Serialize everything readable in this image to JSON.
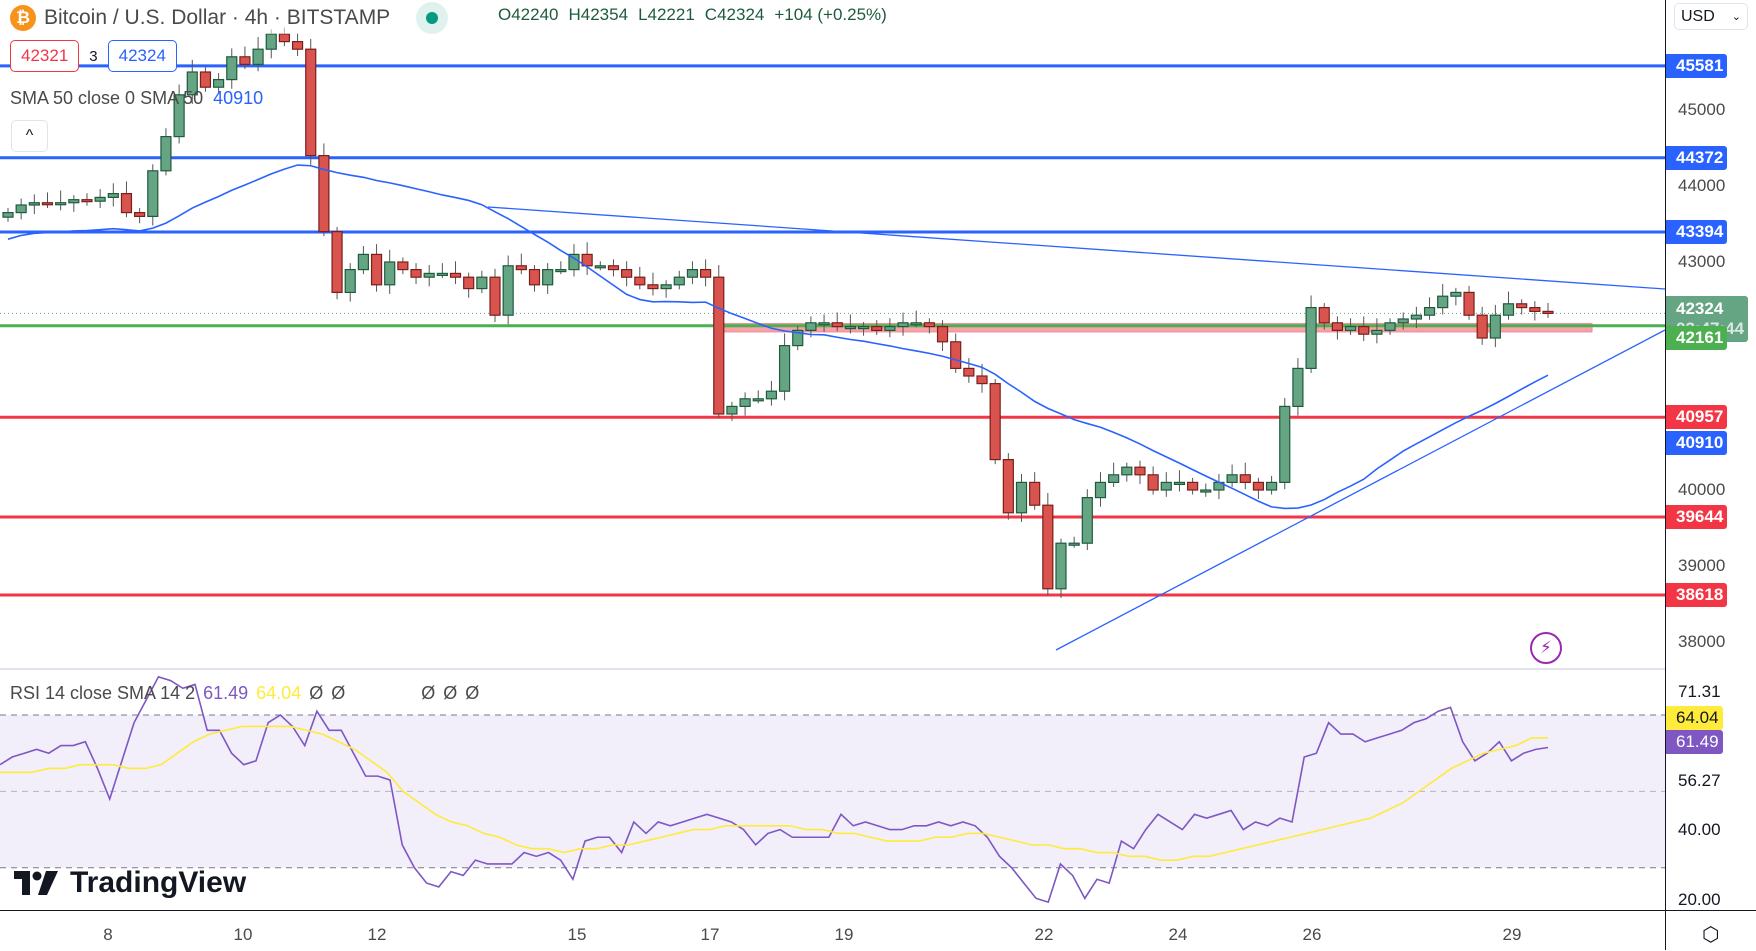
{
  "header": {
    "symbol_icon": "bitcoin-icon",
    "title": "Bitcoin / U.S. Dollar · 4h · BITSTAMP",
    "market_status": "open",
    "ohlc": {
      "open": "O42240",
      "high": "H42354",
      "low": "L42221",
      "close": "C42324",
      "change": "+104 (+0.25%)"
    },
    "bid": "42321",
    "spread": "3",
    "ask": "42324"
  },
  "indicators": {
    "sma": {
      "label": "SMA 50 close 0 SMA 50",
      "value": "40910"
    },
    "rsi": {
      "label": "RSI 14 close SMA 14 2",
      "rsi_value": "61.49",
      "sma_value": "64.04",
      "extras": [
        "Ø",
        "Ø",
        "Ø",
        "Ø",
        "Ø"
      ]
    }
  },
  "collapse_button": "^",
  "currency_select": "USD",
  "logo": "TradingView",
  "price_axis": {
    "ticks": [
      "45000",
      "44000",
      "43000",
      "40000",
      "39000",
      "38000"
    ],
    "labels": [
      {
        "value": "45581",
        "color": "#2962ff"
      },
      {
        "value": "44372",
        "color": "#2962ff"
      },
      {
        "value": "43394",
        "color": "#2962ff"
      },
      {
        "value": "42324",
        "sub": "03:47:44",
        "color": "#66a584"
      },
      {
        "value": "42161",
        "color": "#4caf50"
      },
      {
        "value": "40957",
        "color": "#f23645"
      },
      {
        "value": "40910",
        "color": "#2962ff"
      },
      {
        "value": "39644",
        "color": "#f23645"
      },
      {
        "value": "38618",
        "color": "#f23645"
      }
    ]
  },
  "rsi_axis": {
    "ticks": [
      "71.31",
      "56.27",
      "40.00",
      "20.00"
    ],
    "labels": [
      {
        "value": "64.04",
        "color": "#ffeb3b",
        "text_color": "#131722"
      },
      {
        "value": "61.49",
        "color": "#7e57c2",
        "text_color": "#ffffff"
      }
    ]
  },
  "time_axis": {
    "ticks": [
      "8",
      "10",
      "12",
      "15",
      "17",
      "19",
      "22",
      "24",
      "26",
      "29"
    ]
  },
  "colors": {
    "up": "#66a584",
    "down": "#d9534f",
    "resistance": "#2962ff",
    "support": "#f23645",
    "pivot": "#4caf50",
    "zone": "#f7a1a8",
    "sma": "#2962ff",
    "rsi": "#7e57c2",
    "rsi_sma": "#ffeb3b"
  },
  "chart_data": [
    {
      "type": "candlestick",
      "title": "Bitcoin / U.S. Dollar · 4h · BITSTAMP",
      "xlabel": "",
      "ylabel": "USD",
      "x_ticks": [
        "8",
        "10",
        "12",
        "15",
        "17",
        "19",
        "22",
        "24",
        "26",
        "29"
      ],
      "ylim": [
        37600,
        45900
      ],
      "last_price": 42324,
      "countdown": "03:47:44",
      "horizontal_levels": {
        "resistance": [
          45581,
          44372,
          43394
        ],
        "pivot": [
          42161
        ],
        "support": [
          40957,
          39644,
          38618
        ]
      },
      "sma50_last": 40910,
      "trendlines": [
        {
          "name": "descending",
          "from": {
            "x": "14",
            "y": 43900
          },
          "to": {
            "x": "30",
            "y": 42540
          }
        },
        {
          "name": "ascending",
          "from": {
            "x": "22.5",
            "y": 37900
          },
          "to": {
            "x": "30",
            "y": 42000
          }
        }
      ],
      "zone": {
        "from_x": "17",
        "to_x": "29.5",
        "y_low": 42080,
        "y_high": 42190
      },
      "close_series_approx": [
        43650,
        43750,
        43780,
        43770,
        43780,
        43820,
        43800,
        43850,
        43900,
        43650,
        43600,
        44200,
        44650,
        45200,
        45500,
        45300,
        45400,
        45700,
        45600,
        45800,
        46000,
        45900,
        45800,
        44400,
        43400,
        42600,
        42900,
        43100,
        42700,
        43000,
        42900,
        42800,
        42850,
        42850,
        42800,
        42650,
        42800,
        42300,
        42950,
        42900,
        42700,
        42900,
        42900,
        43100,
        42950,
        42950,
        42900,
        42800,
        42700,
        42650,
        42700,
        42800,
        42900,
        42800,
        41000,
        41100,
        41200,
        41200,
        41300,
        41900,
        42100,
        42200,
        42200,
        42150,
        42150,
        42150,
        42100,
        42150,
        42200,
        42200,
        42150,
        41950,
        41600,
        41500,
        41400,
        40400,
        39700,
        40100,
        39800,
        38700,
        39300,
        39300,
        39900,
        40100,
        40200,
        40300,
        40200,
        40000,
        40100,
        40100,
        40000,
        40000,
        40100,
        40200,
        40100,
        40000,
        40100,
        41100,
        41600,
        42400,
        42200,
        42100,
        42150,
        42050,
        42100,
        42200,
        42250,
        42300,
        42400,
        42550,
        42600,
        42300,
        42000,
        42300,
        42450,
        42400,
        42350,
        42324
      ]
    },
    {
      "type": "line",
      "title": "RSI 14 close SMA 14 2",
      "series": [
        {
          "name": "RSI",
          "last": 61.49
        },
        {
          "name": "RSI SMA",
          "last": 64.04
        }
      ],
      "bands": {
        "upper": 70,
        "middle": 50,
        "lower": 30
      },
      "y_ticks": [
        "71.31",
        "56.27",
        "40.00",
        "20.00"
      ],
      "ylim": [
        18,
        78
      ],
      "rsi_values_approx": [
        57,
        59,
        60,
        61,
        60,
        62,
        62,
        63,
        56,
        48,
        58,
        68,
        74,
        80,
        79,
        77,
        78,
        66,
        66,
        60,
        57,
        58,
        68,
        70,
        67,
        62,
        71,
        66,
        66,
        60,
        54,
        54,
        53,
        36,
        30,
        26,
        25,
        29,
        28,
        32,
        31,
        31,
        31,
        34,
        33,
        34,
        32,
        27,
        37,
        38,
        38,
        34,
        42,
        39,
        42,
        41,
        42,
        43,
        44,
        43,
        42,
        40,
        36,
        39,
        40,
        38,
        38,
        38,
        38,
        44,
        41,
        42,
        41,
        40,
        40,
        41,
        41,
        42,
        41,
        42,
        41,
        38,
        33,
        30,
        26,
        22,
        21,
        31,
        28,
        22,
        27,
        26,
        37,
        35,
        40,
        44,
        42,
        40,
        44,
        43,
        44,
        45,
        40,
        42,
        41,
        43,
        42,
        59,
        60,
        68,
        65,
        65,
        63,
        64,
        65,
        66,
        68,
        69,
        71,
        72,
        63,
        58,
        60,
        63,
        58,
        60,
        61,
        61.49
      ],
      "rsi_sma_values_approx": [
        55,
        55,
        55,
        56,
        56,
        57,
        57,
        57,
        56,
        56,
        57,
        60,
        63,
        65,
        66,
        67,
        67,
        67,
        67,
        66,
        65,
        63,
        61,
        58,
        55,
        50,
        47,
        44,
        42,
        41,
        39,
        38,
        36,
        35,
        35,
        34,
        35,
        35,
        36,
        36,
        37,
        38,
        39,
        40,
        40,
        41,
        41,
        41,
        41,
        41,
        40,
        40,
        39,
        39,
        38,
        37,
        37,
        37,
        38,
        38,
        39,
        39,
        38,
        37,
        36,
        36,
        35,
        35,
        34,
        34,
        33,
        33,
        32,
        32,
        33,
        33,
        34,
        35,
        36,
        37,
        38,
        39,
        40,
        41,
        42,
        43,
        45,
        47,
        50,
        53,
        56,
        58,
        60,
        61,
        62,
        64,
        64.04
      ]
    }
  ]
}
